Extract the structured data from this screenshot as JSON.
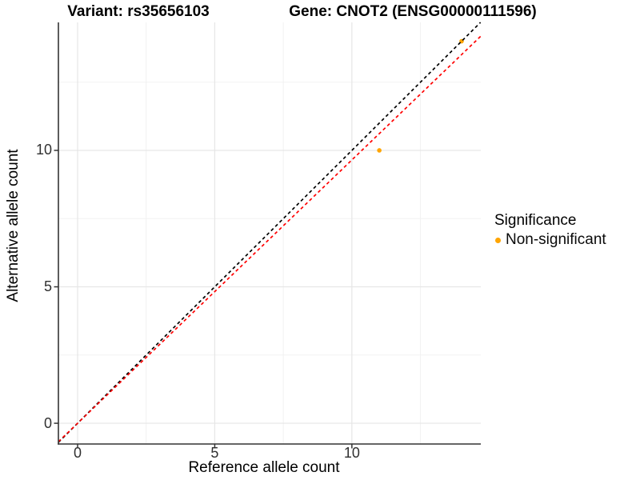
{
  "titles": {
    "variant": "Variant: rs35656103",
    "gene": "Gene: CNOT2 (ENSG00000111596)"
  },
  "legend": {
    "title": "Significance",
    "position": "right"
  },
  "colors": {
    "point_nonsignificant": "#FFA500",
    "identity_line": "#000000",
    "fit_line": "#FF0000",
    "grid_major": "#E6E6E6",
    "grid_minor": "#F2F2F2",
    "axis": "#333333"
  },
  "chart_data": {
    "type": "scatter",
    "title_left": "Variant: rs35656103",
    "title_right": "Gene: CNOT2 (ENSG00000111596)",
    "xlabel": "Reference allele count",
    "ylabel": "Alternative allele count",
    "legend_title": "Significance",
    "legend_position": "right",
    "grid": true,
    "xlim": [
      -0.7,
      14.7
    ],
    "ylim": [
      -0.76,
      14.69
    ],
    "x_ticks": [
      0,
      5,
      10
    ],
    "y_ticks": [
      0,
      5,
      10
    ],
    "x_minor_ticks": [
      2.5,
      7.5,
      12.5
    ],
    "y_minor_ticks": [
      2.5,
      7.5,
      12.5
    ],
    "series": [
      {
        "name": "Non-significant",
        "color": "#FFA500",
        "marker": "circle",
        "points": [
          [
            11,
            10
          ],
          [
            14,
            14
          ]
        ]
      }
    ],
    "reference_lines": [
      {
        "name": "identity",
        "slope": 1,
        "intercept": 0,
        "color": "#000000",
        "style": "dashed"
      },
      {
        "name": "fit",
        "slope": 0.965,
        "intercept": 0,
        "color": "#FF0000",
        "style": "dashed"
      }
    ]
  }
}
